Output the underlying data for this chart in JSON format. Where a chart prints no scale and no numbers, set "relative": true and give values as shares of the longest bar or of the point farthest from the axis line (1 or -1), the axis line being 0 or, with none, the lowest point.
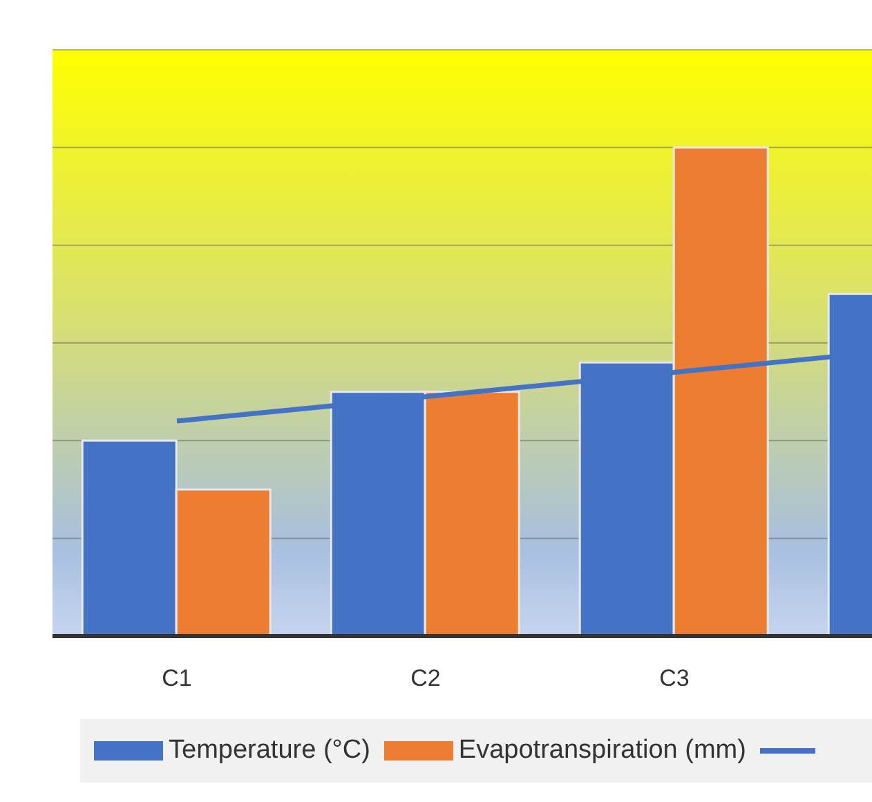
{
  "chart_data": {
    "type": "bar",
    "relative": true,
    "categories": [
      "C1",
      "C2",
      "C3",
      null
    ],
    "series": [
      {
        "name": "Temperature (°C)",
        "color": "#4472c4",
        "values": [
          0.4,
          0.5,
          0.56,
          0.7
        ]
      },
      {
        "name": "Evapotranspiration (mm)",
        "color": "#ed7d31",
        "values": [
          0.3,
          0.5,
          1,
          null
        ]
      },
      {
        "type": "line",
        "color": "#4472c4",
        "values": [
          0.44,
          0.49,
          0.54,
          0.59
        ]
      }
    ],
    "grid": "y",
    "legend": "bottom",
    "marker": "none",
    "line_style": "solid"
  }
}
